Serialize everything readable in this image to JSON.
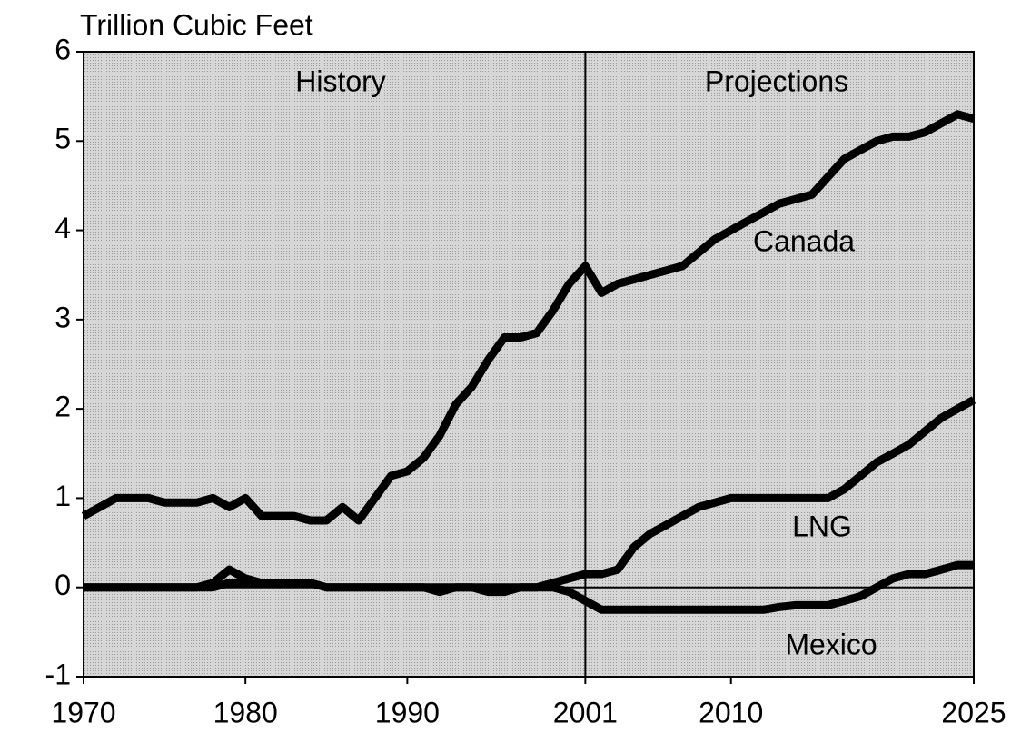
{
  "chart_data": {
    "type": "line",
    "title": "Trillion Cubic Feet",
    "annotations": [
      "History",
      "Projections"
    ],
    "x": [
      1970,
      1971,
      1972,
      1973,
      1974,
      1975,
      1976,
      1977,
      1978,
      1979,
      1980,
      1981,
      1982,
      1983,
      1984,
      1985,
      1986,
      1987,
      1988,
      1989,
      1990,
      1991,
      1992,
      1993,
      1994,
      1995,
      1996,
      1997,
      1998,
      1999,
      2000,
      2001,
      2002,
      2003,
      2004,
      2005,
      2006,
      2007,
      2008,
      2009,
      2010,
      2011,
      2012,
      2013,
      2014,
      2015,
      2016,
      2017,
      2018,
      2019,
      2020,
      2021,
      2022,
      2023,
      2024,
      2025
    ],
    "series": [
      {
        "name": "Canada",
        "color": "#000000",
        "values": [
          0.8,
          0.9,
          1.0,
          1.0,
          1.0,
          0.95,
          0.95,
          0.95,
          1.0,
          0.9,
          1.0,
          0.8,
          0.8,
          0.8,
          0.75,
          0.75,
          0.9,
          0.75,
          1.0,
          1.25,
          1.3,
          1.45,
          1.7,
          2.05,
          2.25,
          2.55,
          2.8,
          2.8,
          2.85,
          3.1,
          3.4,
          3.6,
          3.3,
          3.4,
          3.45,
          3.5,
          3.55,
          3.6,
          3.75,
          3.9,
          4.0,
          4.1,
          4.2,
          4.3,
          4.35,
          4.4,
          4.6,
          4.8,
          4.9,
          5.0,
          5.05,
          5.05,
          5.1,
          5.2,
          5.3,
          5.25
        ]
      },
      {
        "name": "LNG",
        "color": "#000000",
        "values": [
          0.0,
          0.0,
          0.0,
          0.0,
          0.0,
          0.0,
          0.0,
          0.0,
          0.05,
          0.2,
          0.1,
          0.05,
          0.05,
          0.05,
          0.05,
          0.0,
          0.0,
          0.0,
          0.0,
          0.0,
          0.0,
          0.0,
          0.0,
          0.0,
          0.0,
          0.0,
          0.0,
          0.0,
          0.0,
          0.05,
          0.1,
          0.15,
          0.15,
          0.2,
          0.45,
          0.6,
          0.7,
          0.8,
          0.9,
          0.95,
          1.0,
          1.0,
          1.0,
          1.0,
          1.0,
          1.0,
          1.0,
          1.1,
          1.25,
          1.4,
          1.5,
          1.6,
          1.75,
          1.9,
          2.0,
          2.1
        ]
      },
      {
        "name": "Mexico",
        "color": "#000000",
        "values": [
          0.0,
          0.0,
          0.0,
          0.0,
          0.0,
          0.0,
          0.0,
          0.0,
          0.0,
          0.05,
          0.05,
          0.05,
          0.05,
          0.05,
          0.05,
          0.0,
          0.0,
          0.0,
          0.0,
          0.0,
          0.0,
          0.0,
          -0.05,
          0.0,
          0.0,
          -0.05,
          -0.05,
          0.0,
          0.0,
          0.0,
          -0.05,
          -0.15,
          -0.25,
          -0.25,
          -0.25,
          -0.25,
          -0.25,
          -0.25,
          -0.25,
          -0.25,
          -0.25,
          -0.25,
          -0.25,
          -0.22,
          -0.2,
          -0.2,
          -0.2,
          -0.15,
          -0.1,
          0.0,
          0.1,
          0.15,
          0.15,
          0.2,
          0.25,
          0.25
        ]
      }
    ],
    "xlim": [
      1970,
      2025
    ],
    "xticks": [
      1970,
      1980,
      1990,
      2001,
      2010,
      2025
    ],
    "ylim": [
      -1,
      6
    ],
    "yticks": [
      -1,
      0,
      1,
      2,
      3,
      4,
      5,
      6
    ],
    "divider_x": 2001,
    "grid": false
  }
}
